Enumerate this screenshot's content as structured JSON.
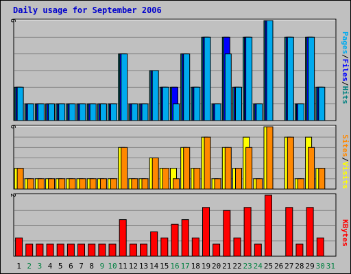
{
  "chart_data": {
    "type": "bar",
    "title": "Daily usage for September 2006",
    "categories": [
      "1",
      "2",
      "3",
      "4",
      "5",
      "6",
      "7",
      "8",
      "9",
      "10",
      "11",
      "12",
      "13",
      "14",
      "15",
      "16",
      "17",
      "18",
      "19",
      "20",
      "21",
      "22",
      "23",
      "24",
      "25",
      "26",
      "27",
      "28",
      "29",
      "30",
      "31"
    ],
    "weekend_days": [
      "2",
      "3",
      "9",
      "10",
      "16",
      "17",
      "23",
      "24",
      "30",
      "31"
    ],
    "colors": {
      "pages": "#00aaee",
      "files": "#0000ff",
      "hits": "#008080",
      "visits": "#ffff00",
      "sites": "#ff8800",
      "kbytes": "#ff0000",
      "panel_bg": "#c0c0c0",
      "weekday_label": "#000000",
      "weekend_label": "#008040",
      "title": "#0000cc"
    },
    "panels": [
      {
        "id": "hits",
        "ymax_label": "6",
        "ylim": [
          0,
          6
        ],
        "legend": [
          "Pages",
          "Files",
          "Hits"
        ],
        "series": [
          {
            "name": "Hits",
            "values": [
              2,
              1,
              1,
              1,
              1,
              1,
              1,
              1,
              1,
              1,
              4,
              1,
              1,
              3,
              2,
              2,
              4,
              2,
              5,
              1,
              5,
              2,
              5,
              1,
              6,
              0,
              5,
              1,
              5,
              2,
              null
            ]
          },
          {
            "name": "Files",
            "values": [
              2,
              1,
              1,
              1,
              1,
              1,
              1,
              1,
              1,
              1,
              4,
              1,
              1,
              3,
              2,
              2,
              4,
              2,
              5,
              1,
              5,
              2,
              5,
              1,
              6,
              0,
              5,
              1,
              5,
              2,
              null
            ]
          },
          {
            "name": "Pages",
            "values": [
              2,
              1,
              1,
              1,
              1,
              1,
              1,
              1,
              1,
              1,
              4,
              1,
              1,
              3,
              2,
              1,
              4,
              2,
              5,
              1,
              4,
              2,
              5,
              1,
              6,
              0,
              5,
              1,
              5,
              2,
              null
            ]
          }
        ]
      },
      {
        "id": "visits",
        "ymax_label": "6",
        "ylim": [
          0,
          6
        ],
        "legend": [
          "Sites",
          "Visits"
        ],
        "series": [
          {
            "name": "Visits",
            "values": [
              2,
              1,
              1,
              1,
              1,
              1,
              1,
              1,
              1,
              1,
              4,
              1,
              1,
              3,
              2,
              2,
              4,
              2,
              5,
              1,
              4,
              2,
              5,
              1,
              6,
              0,
              5,
              1,
              5,
              2,
              null
            ]
          },
          {
            "name": "Sites",
            "values": [
              2,
              1,
              1,
              1,
              1,
              1,
              1,
              1,
              1,
              1,
              4,
              1,
              1,
              3,
              2,
              1,
              4,
              2,
              5,
              1,
              4,
              2,
              4,
              1,
              6,
              0,
              5,
              1,
              4,
              2,
              null
            ]
          }
        ]
      },
      {
        "id": "kbytes",
        "ymax_label": "2",
        "ylim": [
          0,
          2
        ],
        "legend": [
          "KBytes"
        ],
        "series": [
          {
            "name": "KBytes",
            "values": [
              0.6,
              0.4,
              0.4,
              0.4,
              0.4,
              0.4,
              0.4,
              0.4,
              0.4,
              0.4,
              1.2,
              0.4,
              0.4,
              0.8,
              0.6,
              1.05,
              1.2,
              0.6,
              1.6,
              0.4,
              1.5,
              0.6,
              1.6,
              0.4,
              2.0,
              0,
              1.6,
              0.4,
              1.6,
              0.6,
              null
            ]
          }
        ]
      }
    ]
  }
}
